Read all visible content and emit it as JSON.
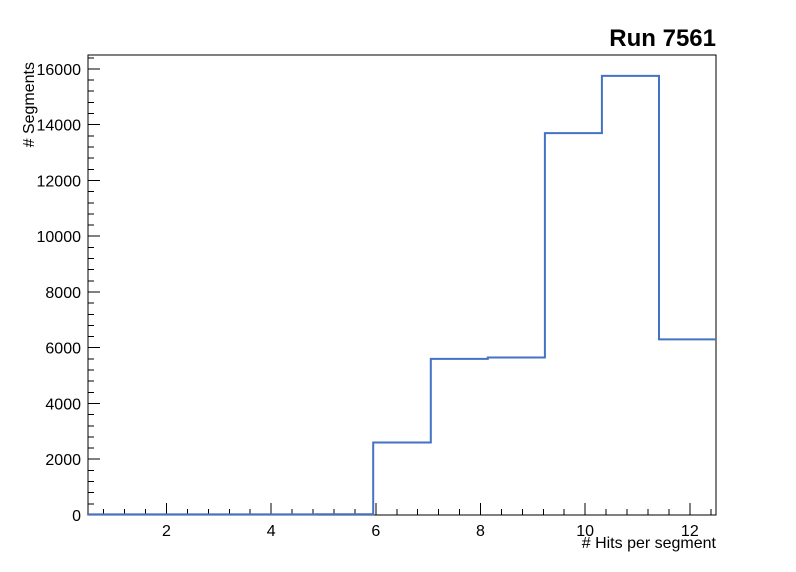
{
  "chart_data": {
    "type": "bar",
    "style": "step-histogram",
    "title": "Run 7561",
    "xlabel": "# Hits per segment",
    "ylabel": "# Segments",
    "xlim": [
      0.5,
      12.5
    ],
    "ylim": [
      0,
      16500
    ],
    "grid": false,
    "legend": "none",
    "line_color": "#4472c4",
    "axis_color": "#000000",
    "background_color": "#ffffff",
    "x_ticks": [
      {
        "value": 2,
        "label": "2"
      },
      {
        "value": 4,
        "label": "4"
      },
      {
        "value": 6,
        "label": "6"
      },
      {
        "value": 8,
        "label": "8"
      },
      {
        "value": 10,
        "label": "10"
      },
      {
        "value": 12,
        "label": "12"
      }
    ],
    "y_ticks": [
      {
        "value": 0,
        "label": "0"
      },
      {
        "value": 2000,
        "label": "2000"
      },
      {
        "value": 4000,
        "label": "4000"
      },
      {
        "value": 6000,
        "label": "6000"
      },
      {
        "value": 8000,
        "label": "8000"
      },
      {
        "value": 10000,
        "label": "10000"
      },
      {
        "value": 12000,
        "label": "12000"
      },
      {
        "value": 14000,
        "label": "14000"
      },
      {
        "value": 16000,
        "label": "16000"
      }
    ],
    "x_minor_step": 0.4,
    "y_minor_step": 400,
    "bins": [
      {
        "x0": 0.5,
        "x1": 1.59,
        "y": 20
      },
      {
        "x0": 1.59,
        "x1": 2.68,
        "y": 20
      },
      {
        "x0": 2.68,
        "x1": 3.77,
        "y": 20
      },
      {
        "x0": 3.77,
        "x1": 4.86,
        "y": 20
      },
      {
        "x0": 4.86,
        "x1": 5.95,
        "y": 30
      },
      {
        "x0": 5.95,
        "x1": 7.05,
        "y": 2600
      },
      {
        "x0": 7.05,
        "x1": 8.14,
        "y": 5600
      },
      {
        "x0": 8.14,
        "x1": 9.23,
        "y": 5650
      },
      {
        "x0": 9.23,
        "x1": 10.32,
        "y": 13700
      },
      {
        "x0": 10.32,
        "x1": 11.41,
        "y": 15750
      },
      {
        "x0": 11.41,
        "x1": 12.5,
        "y": 6300
      }
    ]
  }
}
